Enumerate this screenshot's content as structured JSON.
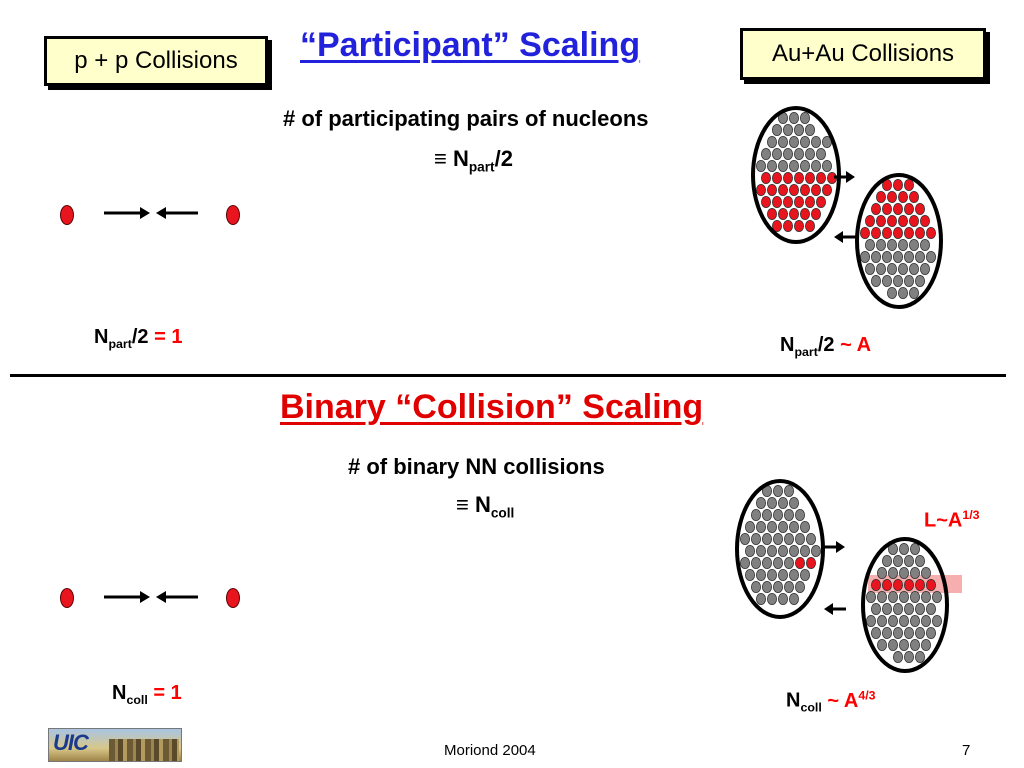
{
  "slide": {
    "pp_box": "p + p Collisions",
    "auau_box": "Au+Au Collisions",
    "section1": {
      "title": "“Participant” Scaling",
      "desc_line1": "# of participating pairs of nucleons",
      "desc_line2_prefix": "≡ N",
      "desc_line2_sub": "part",
      "desc_line2_suffix": "/2",
      "pp_label_N": "N",
      "pp_label_sub": "part",
      "pp_label_tail": "/2",
      "pp_label_value": "= 1",
      "au_label_N": "N",
      "au_label_sub": "part",
      "au_label_tail": "/2",
      "au_label_value": "~ A"
    },
    "section2": {
      "title": "Binary “Collision” Scaling",
      "desc_line1": "# of binary NN collisions",
      "desc_line2_prefix": "≡ N",
      "desc_line2_sub": "coll",
      "pp_label_N": "N",
      "pp_label_sub": "coll",
      "pp_label_value": "= 1",
      "au_label_N": "N",
      "au_label_sub": "coll",
      "au_label_value_base": "~ A",
      "au_label_value_sup": "4/3",
      "length_base": "L~A",
      "length_sup": "1/3"
    },
    "footer": {
      "logo_text": "UIC",
      "center": "Moriond 2004",
      "page": "7"
    },
    "colors": {
      "title1": "#2222dd",
      "title2": "#e00000",
      "nucleon_red": "#e8141e",
      "nucleon_gray": "#808080",
      "box_fill": "#ffffcc"
    }
  }
}
